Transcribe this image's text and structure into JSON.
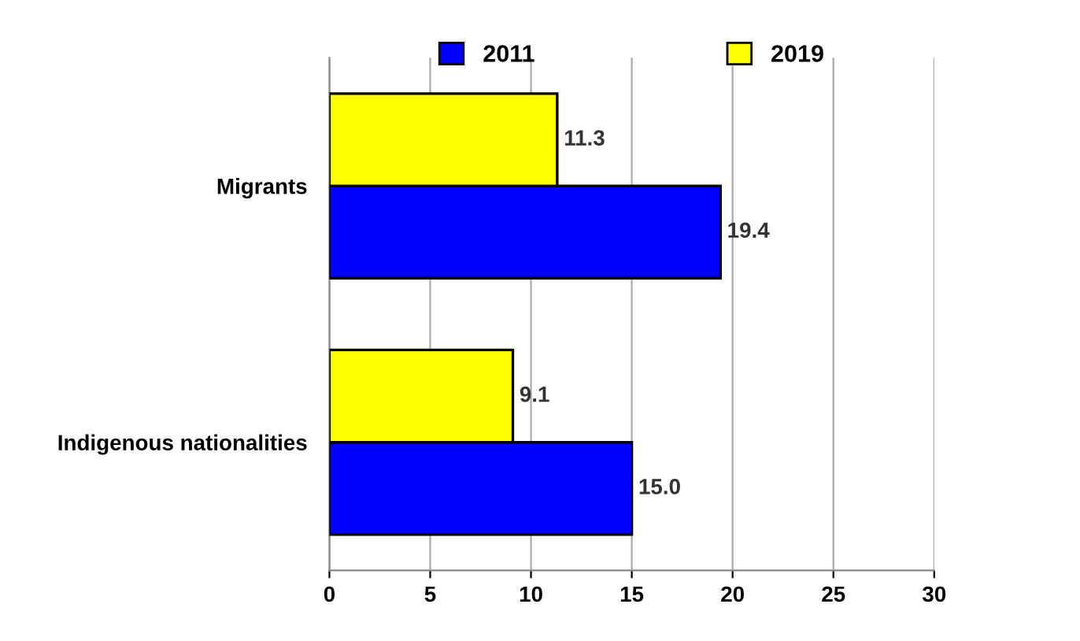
{
  "chart_data": {
    "type": "bar",
    "orientation": "horizontal",
    "categories": [
      "Migrants",
      "Indigenous nationalities"
    ],
    "series": [
      {
        "name": "2011",
        "color": "#0000ff",
        "values": [
          19.4,
          15.0
        ],
        "value_labels": [
          "19.4",
          "15.0"
        ]
      },
      {
        "name": "2019",
        "color": "#ffff00",
        "values": [
          11.3,
          9.1
        ],
        "value_labels": [
          "11.3",
          "9.1"
        ]
      }
    ],
    "xlim": [
      0,
      30
    ],
    "xticks": [
      0,
      5,
      10,
      15,
      20,
      25,
      30
    ],
    "grid": "x",
    "legend": "top"
  }
}
